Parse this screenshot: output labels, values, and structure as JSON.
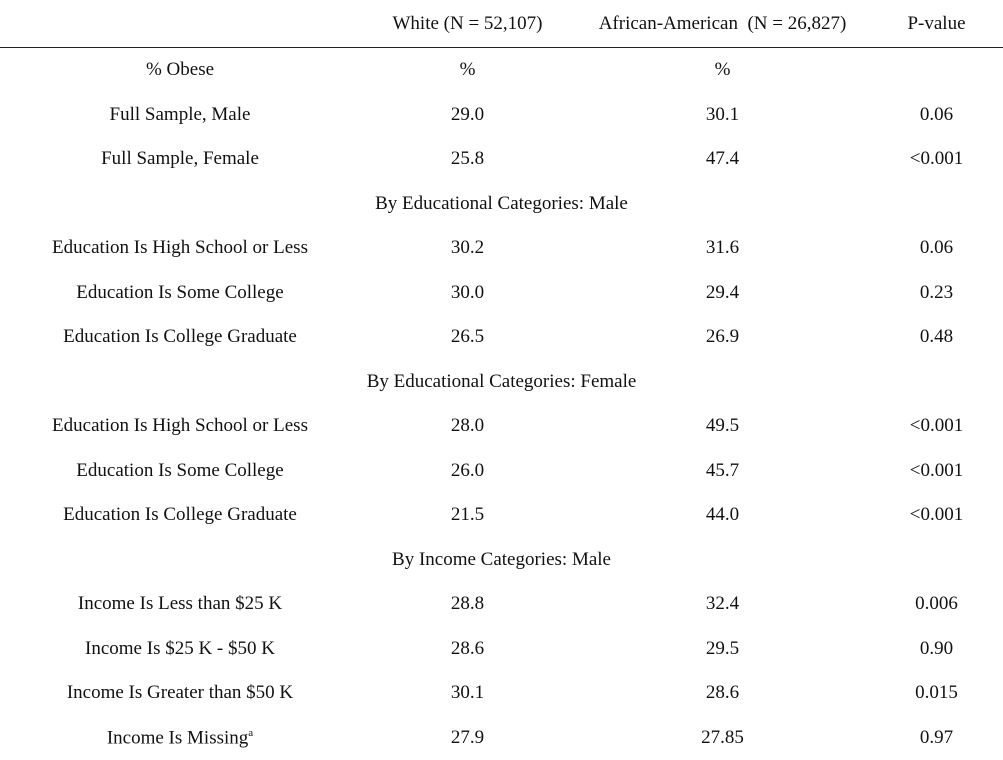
{
  "table": {
    "header": [
      "",
      "White (N = 52,107)",
      "African-American  (N = 26,827)",
      "P-value"
    ],
    "rows": [
      {
        "cells": [
          "% Obese",
          "%",
          "%",
          ""
        ]
      },
      {
        "cells": [
          "Full Sample, Male",
          "29.0",
          "30.1",
          "0.06"
        ]
      },
      {
        "cells": [
          "Full Sample, Female",
          "25.8",
          "47.4",
          "<0.001"
        ]
      },
      {
        "section": "By Educational Categories: Male"
      },
      {
        "cells": [
          "Education Is High School or Less",
          "30.2",
          "31.6",
          "0.06"
        ]
      },
      {
        "cells": [
          "Education Is Some College",
          "30.0",
          "29.4",
          "0.23"
        ]
      },
      {
        "cells": [
          "Education Is College Graduate",
          "26.5",
          "26.9",
          "0.48"
        ]
      },
      {
        "section": "By Educational Categories: Female"
      },
      {
        "cells": [
          "Education Is High School or Less",
          "28.0",
          "49.5",
          "<0.001"
        ]
      },
      {
        "cells": [
          "Education Is Some College",
          "26.0",
          "45.7",
          "<0.001"
        ]
      },
      {
        "cells": [
          "Education Is College Graduate",
          "21.5",
          "44.0",
          "<0.001"
        ]
      },
      {
        "section": "By Income Categories: Male"
      },
      {
        "cells": [
          "Income Is Less than $25 K",
          "28.8",
          "32.4",
          "0.006"
        ]
      },
      {
        "cells": [
          "Income Is $25 K - $50 K",
          "28.6",
          "29.5",
          "0.90"
        ]
      },
      {
        "cells": [
          "Income Is Greater than $50 K",
          "30.1",
          "28.6",
          "0.015"
        ]
      },
      {
        "cells": [
          "Income Is Missing",
          "27.9",
          "27.85",
          "0.97"
        ],
        "sup": "a"
      }
    ]
  }
}
